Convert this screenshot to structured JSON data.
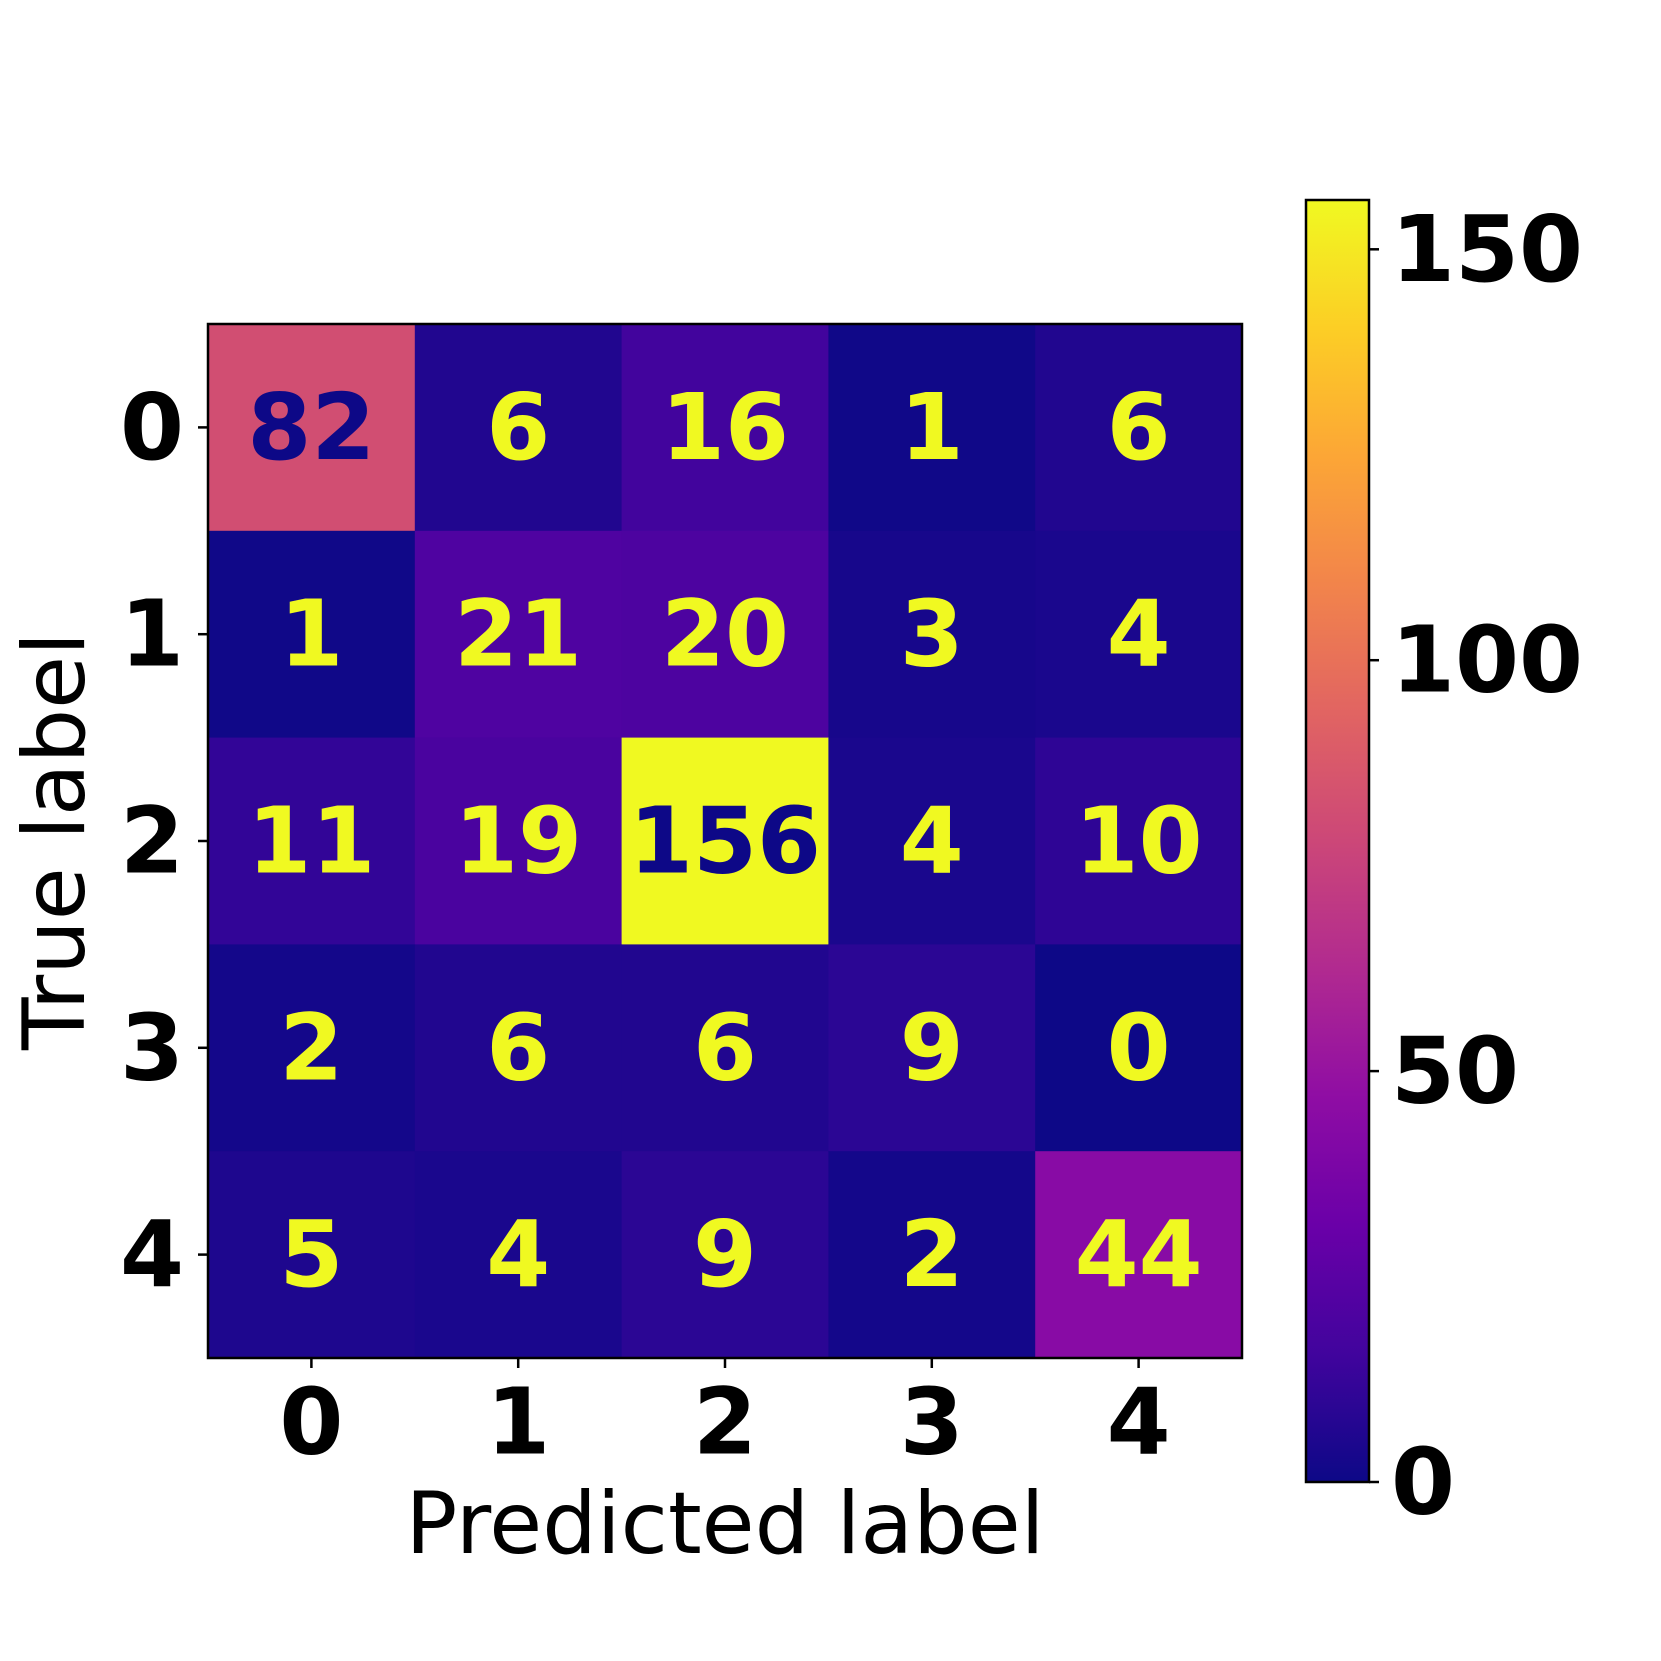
{
  "chart_data": {
    "type": "heatmap",
    "x_label": "Predicted label",
    "y_label": "True label",
    "x_categories": [
      "0",
      "1",
      "2",
      "3",
      "4"
    ],
    "y_categories": [
      "0",
      "1",
      "2",
      "3",
      "4"
    ],
    "values": [
      [
        82,
        6,
        16,
        1,
        6
      ],
      [
        1,
        21,
        20,
        3,
        4
      ],
      [
        11,
        19,
        156,
        4,
        10
      ],
      [
        2,
        6,
        6,
        9,
        0
      ],
      [
        5,
        4,
        9,
        2,
        44
      ]
    ],
    "colormap": "plasma",
    "clim": [
      0,
      156
    ],
    "colorbar_ticks": [
      0,
      50,
      100,
      150
    ]
  }
}
